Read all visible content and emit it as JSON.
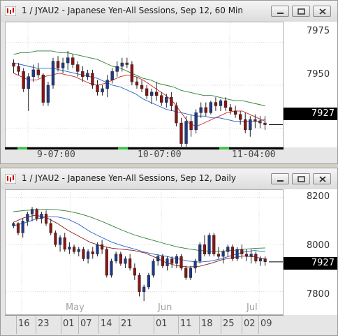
{
  "top_window": {
    "title": "1 / JYAU2 - Japanese Yen-All Sessions, Sep 12, 60 Min",
    "price_labels": [
      "7975",
      "7950",
      "7925"
    ],
    "last_price": "7927",
    "time_labels": [
      "9-07:00",
      "10-07:00",
      "11-04:00"
    ],
    "buttons": [
      "minimize",
      "restore",
      "close"
    ]
  },
  "bottom_window": {
    "title": "1 / JYAU2 - Japanese Yen-All Sessions, Sep 12, Daily",
    "price_labels": [
      "8200",
      "8000",
      "7800"
    ],
    "last_price": "7927",
    "month_labels": [
      "May",
      "Jun",
      "Jul"
    ],
    "date_labels": [
      "16",
      "23",
      "01",
      "07",
      "14",
      "21",
      "01",
      "11",
      "18",
      "25",
      "02",
      "09"
    ],
    "buttons": [
      "minimize",
      "restore",
      "close"
    ]
  },
  "chart_data": [
    {
      "type": "candlestick",
      "title": "1 / JYAU2 - Japanese Yen-All Sessions, Sep 12, 60 Min",
      "ylim": [
        7915,
        7985
      ],
      "y_ticks": [
        7925,
        7950,
        7975
      ],
      "last": 7927,
      "candles": [
        [
          7963,
          7965,
          7957,
          7961
        ],
        [
          7961,
          7963,
          7956,
          7958
        ],
        [
          7958,
          7960,
          7946,
          7948
        ],
        [
          7948,
          7957,
          7935,
          7955
        ],
        [
          7955,
          7962,
          7952,
          7959
        ],
        [
          7959,
          7963,
          7954,
          7956
        ],
        [
          7956,
          7957,
          7938,
          7940
        ],
        [
          7940,
          7952,
          7938,
          7950
        ],
        [
          7950,
          7966,
          7948,
          7964
        ],
        [
          7964,
          7967,
          7958,
          7960
        ],
        [
          7960,
          7966,
          7957,
          7963
        ],
        [
          7963,
          7970,
          7959,
          7966
        ],
        [
          7966,
          7968,
          7960,
          7962
        ],
        [
          7962,
          7964,
          7955,
          7958
        ],
        [
          7958,
          7961,
          7952,
          7955
        ],
        [
          7955,
          7959,
          7953,
          7957
        ],
        [
          7957,
          7959,
          7948,
          7950
        ],
        [
          7950,
          7953,
          7944,
          7946
        ],
        [
          7946,
          7950,
          7944,
          7948
        ],
        [
          7948,
          7956,
          7943,
          7953
        ],
        [
          7953,
          7960,
          7951,
          7958
        ],
        [
          7958,
          7964,
          7955,
          7961
        ],
        [
          7961,
          7966,
          7958,
          7963
        ],
        [
          7963,
          7966,
          7960,
          7962
        ],
        [
          7962,
          7964,
          7950,
          7952
        ],
        [
          7952,
          7955,
          7948,
          7950
        ],
        [
          7950,
          7953,
          7946,
          7948
        ],
        [
          7948,
          7950,
          7942,
          7944
        ],
        [
          7944,
          7948,
          7939,
          7946
        ],
        [
          7946,
          7952,
          7941,
          7944
        ],
        [
          7944,
          7946,
          7938,
          7940
        ],
        [
          7940,
          7945,
          7937,
          7943
        ],
        [
          7943,
          7946,
          7935,
          7938
        ],
        [
          7938,
          7940,
          7926,
          7928
        ],
        [
          7928,
          7931,
          7914,
          7916
        ],
        [
          7916,
          7932,
          7913,
          7929
        ],
        [
          7929,
          7933,
          7920,
          7924
        ],
        [
          7924,
          7936,
          7922,
          7934
        ],
        [
          7934,
          7940,
          7931,
          7937
        ],
        [
          7937,
          7940,
          7932,
          7934
        ],
        [
          7934,
          7941,
          7933,
          7940
        ],
        [
          7940,
          7943,
          7935,
          7938
        ],
        [
          7938,
          7942,
          7935,
          7941
        ],
        [
          7941,
          7943,
          7935,
          7937
        ],
        [
          7937,
          7939,
          7933,
          7935
        ],
        [
          7935,
          7938,
          7931,
          7933
        ],
        [
          7933,
          7935,
          7927,
          7930
        ],
        [
          7930,
          7934,
          7922,
          7924
        ],
        [
          7924,
          7932,
          7920,
          7930
        ],
        [
          7930,
          7933,
          7925,
          7929
        ],
        [
          7929,
          7932,
          7925,
          7928
        ],
        [
          7928,
          7932,
          7924,
          7927
        ]
      ],
      "moving_averages": [
        {
          "color": "#2e7d32",
          "values": [
            7968,
            7969,
            7969,
            7970,
            7970,
            7970,
            7969,
            7969,
            7968,
            7967,
            7966,
            7965,
            7963,
            7961,
            7960,
            7958,
            7956,
            7954,
            7953,
            7951,
            7950,
            7949,
            7947,
            7946,
            7945,
            7944,
            7944,
            7943,
            7942,
            7941,
            7941,
            7940,
            7939,
            7938
          ]
        },
        {
          "color": "#1e63c7",
          "values": [
            7963,
            7962,
            7961,
            7960,
            7960,
            7960,
            7959,
            7958,
            7957,
            7956,
            7955,
            7954,
            7952,
            7950,
            7949,
            7947,
            7945,
            7942,
            7940,
            7938,
            7936,
            7935,
            7934,
            7933,
            7932,
            7932,
            7931,
            7931,
            7930,
            7929,
            7929,
            7929,
            7929,
            7930
          ]
        },
        {
          "color": "#c62828",
          "values": [
            7957,
            7955,
            7953,
            7953,
            7955,
            7956,
            7957,
            7956,
            7955,
            7953,
            7951,
            7950,
            7951,
            7953,
            7955,
            7956,
            7955,
            7953,
            7950,
            7947,
            7944,
            7940,
            7934,
            7928,
            7926,
            7928,
            7930,
            7932,
            7934,
            7935,
            7935,
            7933,
            7931,
            7929
          ]
        }
      ]
    },
    {
      "type": "candlestick",
      "title": "1 / JYAU2 - Japanese Yen-All Sessions, Sep 12, Daily",
      "ylim": [
        7710,
        8220
      ],
      "y_ticks": [
        7800,
        8000,
        8200
      ],
      "last": 7927,
      "candles": [
        [
          8080,
          8095,
          8070,
          8090
        ],
        [
          8090,
          8095,
          8040,
          8050
        ],
        [
          8050,
          8110,
          8030,
          8100
        ],
        [
          8100,
          8140,
          8080,
          8130
        ],
        [
          8130,
          8160,
          8100,
          8150
        ],
        [
          8150,
          8155,
          8100,
          8110
        ],
        [
          8110,
          8140,
          8090,
          8130
        ],
        [
          8130,
          8145,
          8080,
          8090
        ],
        [
          8090,
          8110,
          8040,
          8050
        ],
        [
          8050,
          8060,
          7990,
          8000
        ],
        [
          8000,
          8040,
          7970,
          8030
        ],
        [
          8030,
          8050,
          7970,
          7980
        ],
        [
          7980,
          8010,
          7960,
          7990
        ],
        [
          7990,
          8000,
          7960,
          7970
        ],
        [
          7970,
          7990,
          7950,
          7980
        ],
        [
          7980,
          7990,
          7930,
          7940
        ],
        [
          7940,
          7980,
          7920,
          7970
        ],
        [
          7970,
          7990,
          7940,
          7960
        ],
        [
          7960,
          8010,
          7950,
          8000
        ],
        [
          8000,
          8020,
          7960,
          7980
        ],
        [
          7980,
          7990,
          7860,
          7870
        ],
        [
          7870,
          7940,
          7860,
          7930
        ],
        [
          7930,
          7970,
          7920,
          7960
        ],
        [
          7960,
          7970,
          7910,
          7920
        ],
        [
          7920,
          7950,
          7900,
          7940
        ],
        [
          7940,
          7960,
          7890,
          7900
        ],
        [
          7900,
          7920,
          7850,
          7870
        ],
        [
          7870,
          7880,
          7780,
          7800
        ],
        [
          7800,
          7830,
          7760,
          7820
        ],
        [
          7820,
          7880,
          7810,
          7870
        ],
        [
          7870,
          7940,
          7860,
          7930
        ],
        [
          7930,
          7960,
          7910,
          7950
        ],
        [
          7950,
          7960,
          7900,
          7910
        ],
        [
          7910,
          7950,
          7890,
          7940
        ],
        [
          7940,
          7950,
          7900,
          7920
        ],
        [
          7920,
          7960,
          7900,
          7950
        ],
        [
          7950,
          7960,
          7890,
          7900
        ],
        [
          7900,
          7910,
          7850,
          7860
        ],
        [
          7860,
          7910,
          7850,
          7900
        ],
        [
          7900,
          7940,
          7880,
          7930
        ],
        [
          7930,
          8010,
          7920,
          8000
        ],
        [
          8000,
          8040,
          7950,
          7960
        ],
        [
          7960,
          8050,
          7950,
          8040
        ],
        [
          8040,
          8050,
          7950,
          7960
        ],
        [
          7960,
          7990,
          7940,
          7950
        ],
        [
          7950,
          7980,
          7920,
          7970
        ],
        [
          7970,
          8000,
          7950,
          7990
        ],
        [
          7990,
          8000,
          7930,
          7940
        ],
        [
          7940,
          7990,
          7930,
          7980
        ],
        [
          7980,
          8000,
          7940,
          7960
        ],
        [
          7960,
          7980,
          7930,
          7950
        ],
        [
          7950,
          7980,
          7920,
          7960
        ],
        [
          7960,
          7970,
          7920,
          7930
        ],
        [
          7930,
          7950,
          7910,
          7940
        ],
        [
          7940,
          7950,
          7910,
          7927
        ]
      ],
      "moving_averages": [
        {
          "color": "#2e7d32",
          "values": [
            8140,
            8145,
            8148,
            8150,
            8148,
            8142,
            8132,
            8118,
            8100,
            8080,
            8060,
            8042,
            8028,
            8015,
            8002,
            7990,
            7982,
            7975,
            7972,
            7972,
            7975,
            7980,
            7984,
            7986
          ]
        },
        {
          "color": "#1e63c7",
          "values": [
            8080,
            8092,
            8108,
            8118,
            8118,
            8108,
            8085,
            8055,
            8032,
            8010,
            7995,
            7982,
            7968,
            7958,
            7950,
            7940,
            7930,
            7926,
            7930,
            7940,
            7955,
            7968,
            7975,
            7970
          ]
        },
        {
          "color": "#8b1a1a",
          "values": [
            8095,
            8115,
            8125,
            8115,
            8090,
            8060,
            8035,
            8010,
            7995,
            7985,
            7980,
            7975,
            7965,
            7945,
            7922,
            7910,
            7905,
            7908,
            7920,
            7935,
            7945,
            7952,
            7948,
            7938
          ]
        }
      ]
    }
  ]
}
